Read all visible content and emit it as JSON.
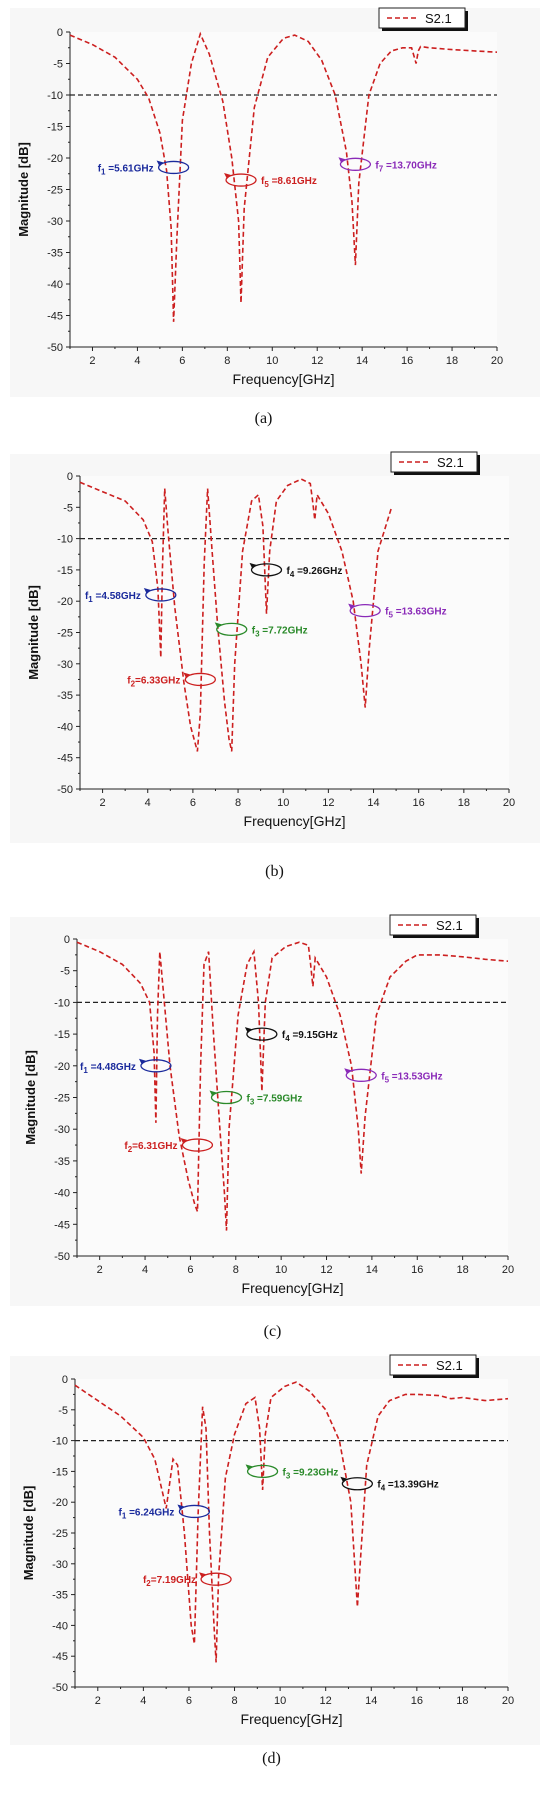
{
  "chart_data": [
    {
      "type": "line",
      "caption": "(a)",
      "xlabel": "Frequency[GHz]",
      "ylabel": "Magnitude [dB]",
      "xlim": [
        1,
        20
      ],
      "ylim": [
        -50,
        0
      ],
      "xticks": [
        2,
        4,
        6,
        8,
        10,
        12,
        14,
        16,
        18,
        20
      ],
      "yticks": [
        0,
        -5,
        -10,
        -15,
        -20,
        -25,
        -30,
        -35,
        -40,
        -45,
        -50
      ],
      "reference_line": -10,
      "legend": {
        "label": "S2.1",
        "position": "top-right"
      },
      "series": [
        {
          "name": "S2.1",
          "color": "#cc1f1f",
          "x": [
            1.0,
            2.0,
            3.0,
            4.0,
            4.5,
            5.0,
            5.3,
            5.5,
            5.61,
            5.75,
            6.0,
            6.4,
            6.8,
            7.2,
            7.8,
            8.2,
            8.5,
            8.61,
            8.75,
            9.2,
            9.8,
            10.5,
            11.0,
            11.6,
            12.2,
            12.8,
            13.3,
            13.55,
            13.7,
            13.85,
            14.3,
            14.8,
            15.3,
            15.8,
            16.2,
            16.4,
            16.5,
            16.6,
            17.0,
            18.0,
            19.0,
            20.0
          ],
          "y": [
            -0.5,
            -2.0,
            -4.0,
            -7.5,
            -10.5,
            -16.0,
            -22.0,
            -31.0,
            -46.0,
            -33.0,
            -14.0,
            -5.0,
            -0.3,
            -3.5,
            -11.0,
            -20.0,
            -30.0,
            -43.0,
            -28.0,
            -12.0,
            -4.0,
            -1.0,
            -0.5,
            -1.5,
            -4.5,
            -10.0,
            -19.0,
            -27.0,
            -37.0,
            -24.0,
            -10.0,
            -5.0,
            -3.0,
            -2.5,
            -2.5,
            -5.0,
            -3.0,
            -2.3,
            -2.5,
            -2.8,
            -3.0,
            -3.2
          ]
        }
      ],
      "annotations": [
        {
          "base": "f",
          "sub": "1",
          "rest": " =5.61GHz",
          "color": "#1a2a9c",
          "x": 5.61,
          "y": -21.5
        },
        {
          "base": "f",
          "sub": "5",
          "rest": " =8.61GHz",
          "color": "#cc1f1f",
          "x": 8.61,
          "y": -23.5
        },
        {
          "base": "f",
          "sub": "7",
          "rest": " =13.70GHz",
          "color": "#8a2ab8",
          "x": 13.7,
          "y": -21.0
        }
      ]
    },
    {
      "type": "line",
      "caption": "(b)",
      "xlabel": "Frequency[GHz]",
      "ylabel": "Magnitude [dB]",
      "xlim": [
        1,
        20
      ],
      "ylim": [
        -50,
        0
      ],
      "xticks": [
        2,
        4,
        6,
        8,
        10,
        12,
        14,
        16,
        18,
        20
      ],
      "yticks": [
        0,
        -5,
        -10,
        -15,
        -20,
        -25,
        -30,
        -35,
        -40,
        -45,
        -50
      ],
      "reference_line": -10,
      "legend": {
        "label": "S2.1",
        "position": "top-right"
      },
      "series": [
        {
          "name": "S2.1",
          "color": "#cc1f1f",
          "x": [
            1.0,
            2.0,
            3.0,
            3.8,
            4.2,
            4.45,
            4.58,
            4.65,
            4.75,
            4.9,
            5.2,
            5.6,
            5.9,
            6.2,
            6.33,
            6.5,
            6.65,
            6.85,
            7.1,
            7.4,
            7.6,
            7.72,
            7.85,
            8.2,
            8.6,
            8.9,
            9.1,
            9.26,
            9.4,
            9.7,
            10.2,
            10.8,
            11.2,
            11.3,
            11.4,
            11.5,
            12.0,
            12.6,
            13.1,
            13.45,
            13.63,
            13.8,
            14.2,
            14.8
          ],
          "y": [
            -1.0,
            -2.5,
            -4.0,
            -7.0,
            -10.5,
            -18.0,
            -29.0,
            -15.0,
            -2.0,
            -9.0,
            -21.0,
            -33.0,
            -40.0,
            -44.0,
            -38.0,
            -14.0,
            -2.0,
            -12.0,
            -24.0,
            -36.0,
            -42.0,
            -44.0,
            -30.0,
            -12.0,
            -4.0,
            -3.0,
            -8.0,
            -22.0,
            -12.0,
            -4.0,
            -1.5,
            -0.5,
            -1.2,
            -4.0,
            -7.0,
            -3.0,
            -6.0,
            -12.0,
            -20.0,
            -30.0,
            -37.0,
            -28.0,
            -12.0,
            -5.0
          ]
        }
      ],
      "annotations": [
        {
          "base": "f",
          "sub": "1",
          "rest": " =4.58GHz",
          "color": "#1a2a9c",
          "x": 4.58,
          "y": -19.0
        },
        {
          "base": "f",
          "sub": "2",
          "rest": "=6.33GHz",
          "color": "#cc1f1f",
          "x": 6.33,
          "y": -32.5
        },
        {
          "base": "f",
          "sub": "3",
          "rest": " =7.72GHz",
          "color": "#2a8a2a",
          "x": 7.72,
          "y": -24.5
        },
        {
          "base": "f",
          "sub": "4",
          "rest": " =9.26GHz",
          "color": "#111111",
          "x": 9.26,
          "y": -15.0
        },
        {
          "base": "f",
          "sub": "5",
          "rest": " =13.63GHz",
          "color": "#8a2ab8",
          "x": 13.63,
          "y": -21.5
        }
      ]
    },
    {
      "type": "line",
      "caption": "(c)",
      "xlabel": "Frequency[GHz]",
      "ylabel": "Magnitude [dB]",
      "xlim": [
        1,
        20
      ],
      "ylim": [
        -50,
        0
      ],
      "xticks": [
        2,
        4,
        6,
        8,
        10,
        12,
        14,
        16,
        18,
        20
      ],
      "yticks": [
        0,
        -5,
        -10,
        -15,
        -20,
        -25,
        -30,
        -35,
        -40,
        -45,
        -50
      ],
      "reference_line": -10,
      "legend": {
        "label": "S2.1",
        "position": "top-right"
      },
      "series": [
        {
          "name": "S2.1",
          "color": "#cc1f1f",
          "x": [
            1.0,
            2.0,
            3.0,
            3.8,
            4.2,
            4.4,
            4.48,
            4.55,
            4.65,
            4.8,
            5.1,
            5.5,
            5.9,
            6.2,
            6.31,
            6.45,
            6.6,
            6.8,
            7.0,
            7.3,
            7.5,
            7.59,
            7.7,
            8.1,
            8.5,
            8.8,
            9.0,
            9.15,
            9.3,
            9.6,
            10.2,
            10.8,
            11.2,
            11.3,
            11.4,
            11.5,
            12.0,
            12.6,
            13.1,
            13.4,
            13.53,
            13.7,
            14.2,
            14.8,
            15.5,
            16.0,
            17.0,
            18.0,
            19.0,
            20.0
          ],
          "y": [
            -0.5,
            -2.0,
            -4.0,
            -7.0,
            -10.0,
            -18.0,
            -29.0,
            -12.0,
            -2.0,
            -8.0,
            -20.0,
            -31.0,
            -38.0,
            -42.0,
            -43.0,
            -20.0,
            -4.0,
            -2.0,
            -14.0,
            -30.0,
            -40.0,
            -46.0,
            -30.0,
            -12.0,
            -4.0,
            -2.0,
            -10.0,
            -24.0,
            -10.0,
            -3.0,
            -1.2,
            -0.5,
            -1.0,
            -4.0,
            -7.5,
            -3.0,
            -6.0,
            -12.0,
            -20.0,
            -30.0,
            -37.0,
            -28.0,
            -12.0,
            -6.0,
            -3.5,
            -2.5,
            -2.5,
            -2.8,
            -3.2,
            -3.5
          ]
        }
      ],
      "annotations": [
        {
          "base": "f",
          "sub": "1",
          "rest": " =4.48GHz",
          "color": "#1a2a9c",
          "x": 4.48,
          "y": -20.0
        },
        {
          "base": "f",
          "sub": "2",
          "rest": "=6.31GHz",
          "color": "#cc1f1f",
          "x": 6.31,
          "y": -32.5
        },
        {
          "base": "f",
          "sub": "3",
          "rest": " =7.59GHz",
          "color": "#2a8a2a",
          "x": 7.59,
          "y": -25.0
        },
        {
          "base": "f",
          "sub": "4",
          "rest": " =9.15GHz",
          "color": "#111111",
          "x": 9.15,
          "y": -15.0
        },
        {
          "base": "f",
          "sub": "5",
          "rest": " =13.53GHz",
          "color": "#8a2ab8",
          "x": 13.53,
          "y": -21.5
        }
      ]
    },
    {
      "type": "line",
      "caption": "(d)",
      "xlabel": "Frequency[GHz]",
      "ylabel": "Magnitude [dB]",
      "xlim": [
        1,
        20
      ],
      "ylim": [
        -50,
        0
      ],
      "xticks": [
        2,
        4,
        6,
        8,
        10,
        12,
        14,
        16,
        18,
        20
      ],
      "yticks": [
        0,
        -5,
        -10,
        -15,
        -20,
        -25,
        -30,
        -35,
        -40,
        -45,
        -50
      ],
      "reference_line": -10,
      "legend": {
        "label": "S2.1",
        "position": "top-right"
      },
      "series": [
        {
          "name": "S2.1",
          "color": "#cc1f1f",
          "x": [
            1.0,
            2.0,
            3.0,
            4.0,
            4.5,
            5.0,
            5.3,
            5.5,
            5.8,
            6.1,
            6.24,
            6.4,
            6.6,
            6.75,
            6.9,
            7.1,
            7.19,
            7.3,
            7.6,
            8.0,
            8.5,
            8.9,
            9.1,
            9.23,
            9.35,
            9.6,
            10.2,
            10.7,
            11.3,
            12.0,
            12.6,
            13.1,
            13.39,
            13.55,
            13.8,
            14.3,
            14.8,
            15.5,
            16.0,
            17.0,
            17.5,
            18.0,
            19.0,
            20.0
          ],
          "y": [
            -1.0,
            -3.5,
            -6.0,
            -9.5,
            -13.0,
            -21.0,
            -13.0,
            -14.0,
            -25.0,
            -40.0,
            -43.0,
            -22.0,
            -4.5,
            -8.0,
            -25.0,
            -40.0,
            -46.0,
            -32.0,
            -16.0,
            -9.0,
            -4.0,
            -3.0,
            -8.0,
            -18.0,
            -9.0,
            -3.0,
            -1.2,
            -0.5,
            -2.0,
            -5.0,
            -10.0,
            -20.0,
            -37.0,
            -28.0,
            -14.0,
            -6.0,
            -3.5,
            -2.5,
            -2.5,
            -2.7,
            -3.2,
            -3.0,
            -3.5,
            -3.2
          ]
        }
      ],
      "annotations": [
        {
          "base": "f",
          "sub": "1",
          "rest": " =6.24GHz",
          "color": "#1a2a9c",
          "x": 6.24,
          "y": -21.5
        },
        {
          "base": "f",
          "sub": "2",
          "rest": "=7.19GHz",
          "color": "#cc1f1f",
          "x": 7.19,
          "y": -32.5
        },
        {
          "base": "f",
          "sub": "3",
          "rest": " =9.23GHz",
          "color": "#2a8a2a",
          "x": 9.23,
          "y": -15.0
        },
        {
          "base": "f",
          "sub": "4",
          "rest": " =13.39GHz",
          "color": "#111111",
          "x": 13.39,
          "y": -17.0
        }
      ]
    }
  ]
}
